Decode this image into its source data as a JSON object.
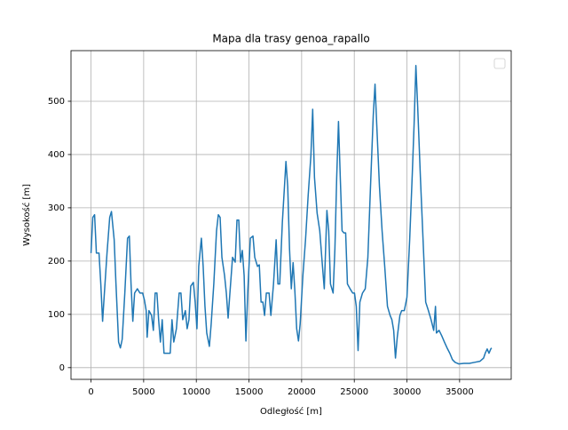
{
  "chart_data": {
    "type": "line",
    "title": "Mapa dla trasy genoa_rapallo",
    "x_label": "Odległość [m]",
    "y_label": "Wysokość [m]",
    "color": "#1f77b4",
    "grid": true,
    "legend": "upper right",
    "xlim": [
      -1900,
      39900
    ],
    "ylim": [
      -22,
      595
    ],
    "xticks": [
      0,
      5000,
      10000,
      15000,
      20000,
      25000,
      30000,
      35000
    ],
    "yticks": [
      0,
      100,
      200,
      300,
      400,
      500
    ],
    "x": [
      0,
      170,
      340,
      510,
      760,
      930,
      1100,
      1270,
      1520,
      1775,
      1940,
      2200,
      2370,
      2620,
      2790,
      2960,
      3210,
      3470,
      3640,
      3800,
      3970,
      4140,
      4400,
      4650,
      4900,
      5070,
      5240,
      5330,
      5500,
      5750,
      5920,
      6090,
      6260,
      6420,
      6590,
      6760,
      6930,
      7190,
      7520,
      7690,
      7860,
      8110,
      8370,
      8540,
      8710,
      8960,
      9130,
      9300,
      9470,
      9720,
      9890,
      10060,
      10230,
      10480,
      10650,
      10820,
      10990,
      11240,
      11410,
      11660,
      11920,
      12090,
      12260,
      12430,
      12680,
      12850,
      13020,
      13190,
      13440,
      13690,
      13860,
      14030,
      14200,
      14370,
      14540,
      14710,
      14880,
      15130,
      15380,
      15550,
      15810,
      15980,
      16150,
      16320,
      16480,
      16650,
      16910,
      17080,
      17330,
      17580,
      17750,
      17920,
      18170,
      18510,
      18680,
      18850,
      19020,
      19190,
      19360,
      19530,
      19700,
      19860,
      20120,
      20370,
      20620,
      20880,
      21050,
      21220,
      21470,
      21720,
      21980,
      22150,
      22400,
      22570,
      22740,
      22990,
      23160,
      23330,
      23500,
      23670,
      23840,
      24010,
      24180,
      24350,
      24600,
      24850,
      25020,
      25190,
      25360,
      25530,
      25780,
      26040,
      26290,
      26540,
      26800,
      26970,
      27130,
      27390,
      27640,
      27890,
      28150,
      28400,
      28570,
      28740,
      28910,
      29080,
      29330,
      29500,
      29750,
      30000,
      30260,
      30510,
      30680,
      30850,
      31020,
      31280,
      31530,
      31780,
      32040,
      32290,
      32540,
      32710,
      32800,
      33050,
      33300,
      33560,
      33810,
      34070,
      34320,
      34570,
      34910,
      35420,
      35930,
      36430,
      36940,
      37280,
      37450,
      37620,
      37790,
      37960,
      38040
    ],
    "values": [
      215,
      282,
      287,
      215,
      215,
      157,
      87,
      140,
      215,
      282,
      293,
      240,
      157,
      48,
      37,
      53,
      140,
      243,
      247,
      157,
      87,
      140,
      148,
      140,
      140,
      127,
      107,
      57,
      107,
      98,
      70,
      140,
      140,
      90,
      48,
      90,
      27,
      27,
      27,
      90,
      48,
      73,
      140,
      140,
      90,
      107,
      73,
      90,
      153,
      160,
      123,
      73,
      190,
      243,
      190,
      115,
      65,
      40,
      82,
      157,
      257,
      287,
      282,
      207,
      173,
      140,
      93,
      140,
      207,
      198,
      277,
      277,
      198,
      220,
      173,
      50,
      140,
      243,
      247,
      207,
      190,
      193,
      123,
      123,
      98,
      140,
      140,
      98,
      157,
      240,
      157,
      157,
      273,
      387,
      340,
      223,
      148,
      197,
      143,
      73,
      50,
      82,
      173,
      240,
      323,
      398,
      485,
      357,
      290,
      257,
      190,
      148,
      295,
      257,
      157,
      140,
      223,
      357,
      462,
      357,
      257,
      253,
      253,
      157,
      148,
      140,
      140,
      115,
      32,
      123,
      140,
      148,
      207,
      340,
      473,
      532,
      457,
      340,
      257,
      190,
      115,
      98,
      90,
      70,
      18,
      57,
      98,
      107,
      107,
      132,
      240,
      365,
      457,
      567,
      490,
      357,
      240,
      123,
      107,
      90,
      70,
      115,
      65,
      70,
      60,
      48,
      37,
      27,
      15,
      10,
      7,
      8,
      8,
      10,
      12,
      18,
      28,
      35,
      27,
      35,
      37
    ]
  }
}
